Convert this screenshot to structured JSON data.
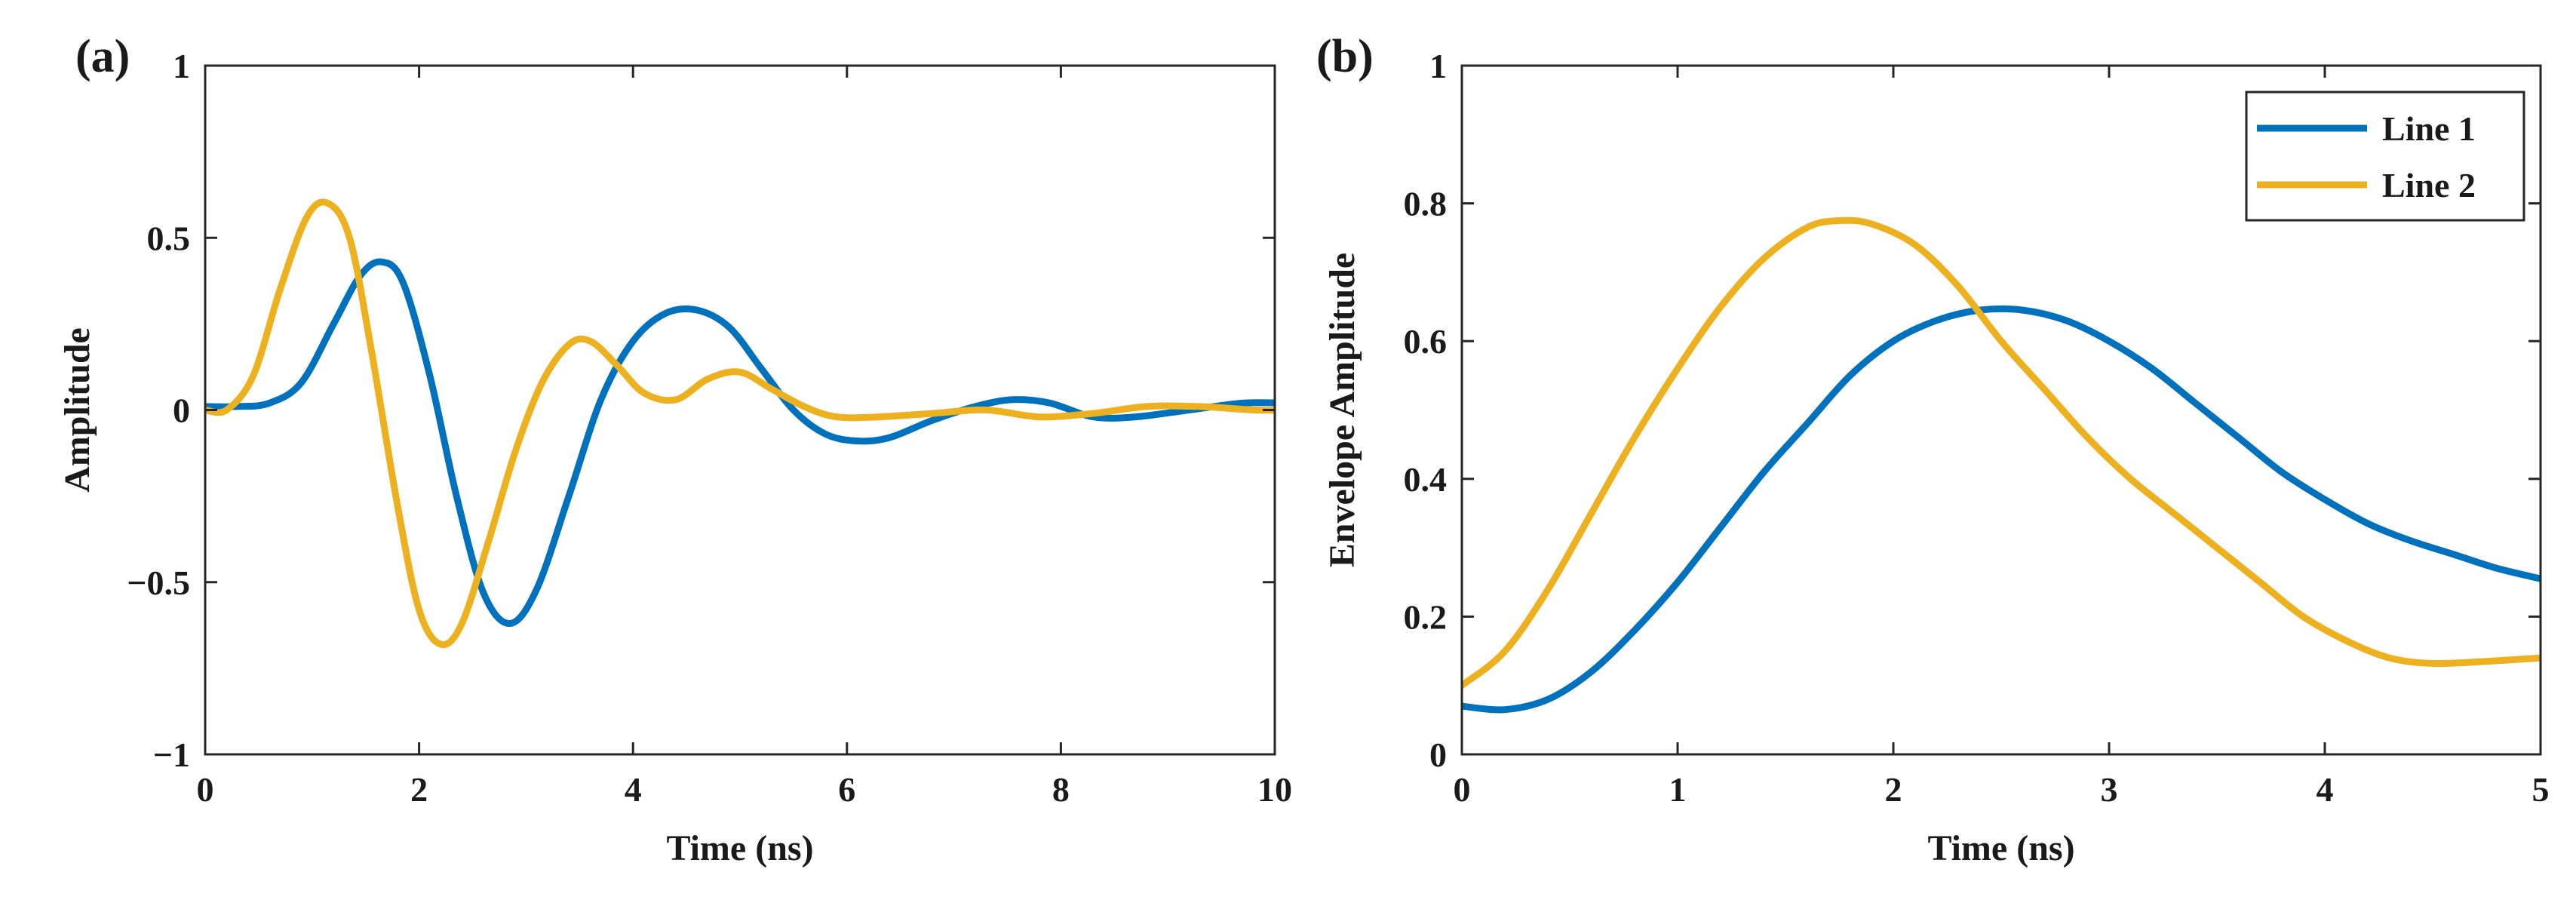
{
  "colors": {
    "line1": "#0072BD",
    "line2": "#EDB120",
    "axis": "#262626"
  },
  "chart_data": [
    {
      "type": "line",
      "panel_label": "(a)",
      "xlabel": "Time (ns)",
      "ylabel": "Amplitude",
      "xlim": [
        0,
        10
      ],
      "ylim": [
        -1,
        1
      ],
      "x_ticks": [
        0,
        2,
        4,
        6,
        8,
        10
      ],
      "x_tick_labels": [
        "0",
        "2",
        "4",
        "6",
        "8",
        "10"
      ],
      "y_ticks": [
        -1,
        -0.5,
        0,
        0.5,
        1
      ],
      "y_tick_labels": [
        "−1",
        "−0.5",
        "0",
        "0.5",
        "1"
      ],
      "legend": null,
      "series": [
        {
          "name": "Line 1",
          "color": "#0072BD",
          "x": [
            0,
            0.3,
            0.6,
            0.9,
            1.2,
            1.45,
            1.65,
            1.85,
            2.1,
            2.35,
            2.6,
            2.85,
            3.1,
            3.4,
            3.7,
            4.0,
            4.3,
            4.6,
            4.9,
            5.2,
            5.5,
            5.8,
            6.1,
            6.4,
            6.8,
            7.2,
            7.55,
            7.9,
            8.3,
            8.7,
            9.2,
            9.7,
            10.1
          ],
          "y": [
            0.01,
            0.01,
            0.02,
            0.08,
            0.25,
            0.39,
            0.43,
            0.37,
            0.1,
            -0.25,
            -0.53,
            -0.62,
            -0.52,
            -0.25,
            0.03,
            0.2,
            0.28,
            0.29,
            0.24,
            0.12,
            0.0,
            -0.07,
            -0.09,
            -0.08,
            -0.03,
            0.01,
            0.03,
            0.02,
            -0.02,
            -0.02,
            0.0,
            0.02,
            0.02
          ]
        },
        {
          "name": "Line 2",
          "color": "#EDB120",
          "x": [
            0,
            0.2,
            0.45,
            0.7,
            0.95,
            1.15,
            1.35,
            1.55,
            1.8,
            2.0,
            2.2,
            2.4,
            2.65,
            2.9,
            3.15,
            3.4,
            3.6,
            3.85,
            4.1,
            4.4,
            4.7,
            5.0,
            5.3,
            5.6,
            5.9,
            6.3,
            6.8,
            7.3,
            7.8,
            8.3,
            8.8,
            9.3,
            9.8,
            10.1
          ],
          "y": [
            0.0,
            0.0,
            0.1,
            0.35,
            0.56,
            0.6,
            0.5,
            0.18,
            -0.28,
            -0.58,
            -0.68,
            -0.62,
            -0.38,
            -0.12,
            0.08,
            0.19,
            0.2,
            0.13,
            0.05,
            0.03,
            0.09,
            0.11,
            0.06,
            0.01,
            -0.02,
            -0.02,
            -0.01,
            0.0,
            -0.02,
            -0.01,
            0.01,
            0.01,
            0.0,
            0.0
          ]
        }
      ]
    },
    {
      "type": "line",
      "panel_label": "(b)",
      "xlabel": "Time (ns)",
      "ylabel": "Envelope Amplitude",
      "xlim": [
        0,
        5
      ],
      "ylim": [
        0,
        1
      ],
      "x_ticks": [
        0,
        1,
        2,
        3,
        4,
        5
      ],
      "x_tick_labels": [
        "0",
        "1",
        "2",
        "3",
        "4",
        "5"
      ],
      "y_ticks": [
        0,
        0.2,
        0.4,
        0.6,
        0.8,
        1
      ],
      "y_tick_labels": [
        "0",
        "0.2",
        "0.4",
        "0.6",
        "0.8",
        "1"
      ],
      "legend": "top-right",
      "series": [
        {
          "name": "Line 1",
          "color": "#0072BD",
          "x": [
            0,
            0.2,
            0.4,
            0.6,
            0.8,
            1.0,
            1.2,
            1.4,
            1.6,
            1.8,
            2.0,
            2.2,
            2.4,
            2.6,
            2.8,
            3.0,
            3.2,
            3.4,
            3.6,
            3.8,
            4.0,
            4.2,
            4.4,
            4.6,
            4.8,
            5.0
          ],
          "y": [
            0.07,
            0.065,
            0.08,
            0.12,
            0.18,
            0.25,
            0.33,
            0.41,
            0.48,
            0.55,
            0.6,
            0.63,
            0.645,
            0.645,
            0.63,
            0.6,
            0.56,
            0.51,
            0.46,
            0.41,
            0.37,
            0.335,
            0.31,
            0.29,
            0.27,
            0.255
          ]
        },
        {
          "name": "Line 2",
          "color": "#EDB120",
          "x": [
            0,
            0.2,
            0.4,
            0.6,
            0.8,
            1.0,
            1.2,
            1.4,
            1.6,
            1.75,
            1.9,
            2.1,
            2.3,
            2.5,
            2.7,
            2.9,
            3.1,
            3.3,
            3.5,
            3.7,
            3.9,
            4.1,
            4.3,
            4.5,
            4.75,
            5.0
          ],
          "y": [
            0.1,
            0.15,
            0.24,
            0.35,
            0.46,
            0.56,
            0.65,
            0.72,
            0.765,
            0.775,
            0.77,
            0.74,
            0.68,
            0.6,
            0.53,
            0.46,
            0.4,
            0.35,
            0.3,
            0.25,
            0.2,
            0.165,
            0.14,
            0.132,
            0.135,
            0.14
          ]
        }
      ]
    }
  ]
}
